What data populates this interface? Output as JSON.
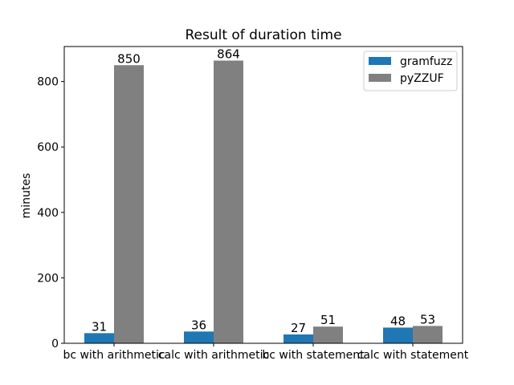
{
  "chart_data": {
    "type": "bar",
    "title": "Result of duration time",
    "xlabel": "",
    "ylabel": "minutes",
    "categories": [
      "bc with arithmetic",
      "calc with arithmetic",
      "bc with statement",
      "calc with statement"
    ],
    "series": [
      {
        "name": "gramfuzz",
        "values": [
          31,
          36,
          27,
          48
        ],
        "color": "#1f77b4"
      },
      {
        "name": "pyZZUF",
        "values": [
          850,
          864,
          51,
          53
        ],
        "color": "#808080"
      }
    ],
    "data_labels": true,
    "ylim": [
      0,
      907
    ],
    "yticks": [
      0,
      200,
      400,
      600,
      800
    ],
    "grid": false,
    "legend": "top-right"
  }
}
